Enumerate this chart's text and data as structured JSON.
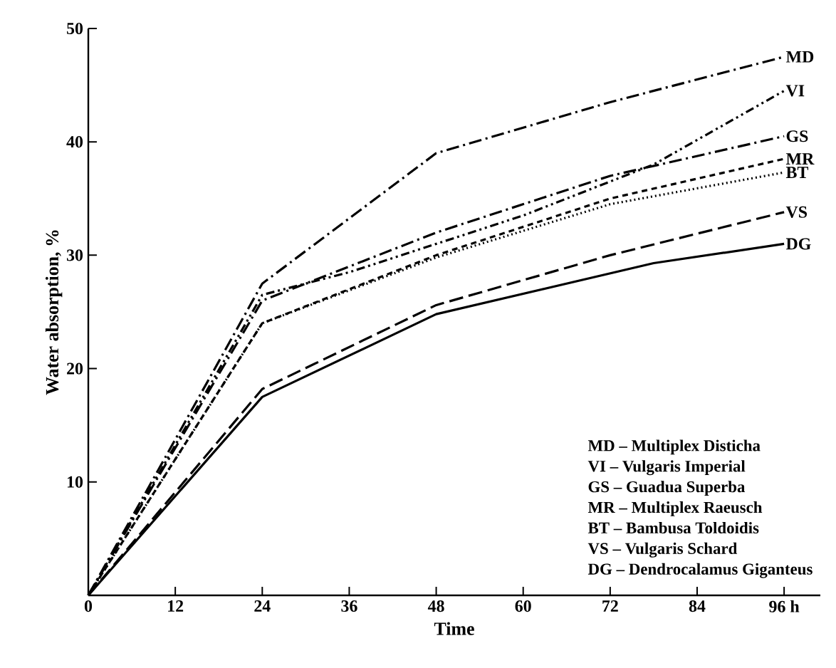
{
  "chart_data": {
    "type": "line",
    "xlabel": "Time",
    "ylabel": "Water absorption, %",
    "xlim": [
      0,
      101
    ],
    "ylim": [
      0,
      50
    ],
    "xticks": [
      0,
      12,
      24,
      36,
      48,
      60,
      72,
      84,
      {
        "value": 96,
        "label": "96 h"
      }
    ],
    "yticks": [
      10,
      20,
      30,
      40,
      50
    ],
    "grid": false,
    "legend": false,
    "marker": "none",
    "series": [
      {
        "name": "MD",
        "color": "#000000",
        "line_style": "dashdot",
        "x": [
          0,
          24,
          48,
          72,
          96
        ],
        "values": [
          0,
          27.5,
          39,
          43.5,
          47.5
        ]
      },
      {
        "name": "VI",
        "color": "#000000",
        "line_style": "dashdotdot",
        "x": [
          0,
          24,
          36,
          60,
          78,
          96
        ],
        "values": [
          0,
          26.5,
          28.5,
          33.5,
          38,
          44.5
        ]
      },
      {
        "name": "GS",
        "color": "#000000",
        "line_style": "dashdot",
        "x": [
          0,
          24,
          48,
          72,
          96
        ],
        "values": [
          0,
          26,
          32,
          37,
          40.5
        ]
      },
      {
        "name": "MR",
        "color": "#000000",
        "line_style": "dashed",
        "x": [
          0,
          24,
          48,
          72,
          96
        ],
        "values": [
          0,
          24,
          30,
          35,
          38.5
        ]
      },
      {
        "name": "BT",
        "color": "#000000",
        "line_style": "dotted",
        "x": [
          0,
          24,
          48,
          72,
          96
        ],
        "values": [
          0,
          24,
          29.8,
          34.5,
          37.3
        ]
      },
      {
        "name": "VS",
        "color": "#000000",
        "line_style": "longdashed",
        "x": [
          0,
          24,
          48,
          72,
          96
        ],
        "values": [
          0,
          18.2,
          25.6,
          30,
          33.8
        ]
      },
      {
        "name": "DG",
        "color": "#000000",
        "line_style": "solid",
        "x": [
          0,
          24,
          48,
          78,
          96
        ],
        "values": [
          0,
          17.5,
          24.8,
          29.3,
          31
        ]
      }
    ],
    "annotations": [
      "MD – Multiplex Disticha",
      "VI – Vulgaris Imperial",
      "GS – Guadua Superba",
      "MR – Multiplex Raeusch",
      "BT – Bambusa Toldoidis",
      "VS – Vulgaris Schard",
      "DG – Dendrocalamus Giganteus"
    ]
  }
}
